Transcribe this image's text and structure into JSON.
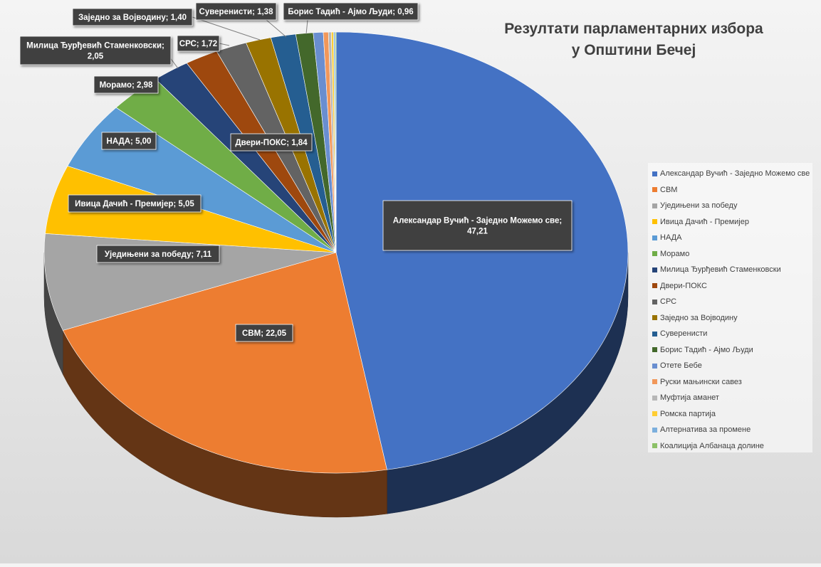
{
  "chart_data": {
    "type": "pie",
    "title": "Резултати парламентарних избора у Општини Бечеј",
    "title_lines": [
      "Резултати парламентарних избора",
      "у Општини Бечеј"
    ],
    "categories": [
      "Александар Вучић - Заједно Можемо све",
      "СВМ",
      "Уједињени за победу",
      "Ивица Дачић - Премијер",
      "НАДА",
      "Морамо",
      "Милица Ђурђевић Стаменковски",
      "Двери-ПОКС",
      "СРС",
      "Заједно за Војводину",
      "Суверенисти",
      "Борис Тадић - Ајмо Људи",
      "Отете Бебе",
      "Руски мањински савез",
      "Муфтија аманет",
      "Ромска партија",
      "Алтернатива за промене",
      "Коалиција Албанаца долине"
    ],
    "values": [
      47.21,
      22.05,
      7.11,
      5.05,
      5.0,
      2.98,
      2.05,
      1.84,
      1.72,
      1.4,
      1.38,
      0.96,
      0.55,
      0.28,
      0.16,
      0.12,
      0.08,
      0.06
    ],
    "legend_labels": [
      "Александар Вучић - Заједно Можемо све",
      "СВМ",
      "Уједињени за победу",
      "Ивица Дачић - Премијер",
      "НАДА",
      "Морамо",
      "Милица Ђурђевић Стаменковски",
      "Двери-ПОКС",
      "СРС",
      "Заједно за Војводину",
      "Суверенисти",
      "Борис Тадић - Ајмо Људи",
      "Отете Бебе",
      "Руски мањински савез",
      "Муфтија аманет",
      "Ромска партија",
      "Алтернатива за промене",
      "Коалиција Албанаца долине"
    ],
    "colors": [
      "#4472C4",
      "#ED7D31",
      "#A5A5A5",
      "#FFC000",
      "#5B9BD5",
      "#70AD47",
      "#264478",
      "#9E480E",
      "#636363",
      "#997300",
      "#255E91",
      "#43682B",
      "#698ED0",
      "#F1975A",
      "#B7B7B7",
      "#FFCD33",
      "#7CAFDD",
      "#8CC168"
    ],
    "data_labels": [
      {
        "text": [
          "Александар Вучић - Заједно Можемо све;",
          "47,21"
        ]
      },
      {
        "text": [
          "СВМ; 22,05"
        ]
      },
      {
        "text": [
          "Уједињени за победу; 7,11"
        ]
      },
      {
        "text": [
          "Ивица Дачић - Премијер; 5,05"
        ]
      },
      {
        "text": [
          "НАДА; 5,00"
        ]
      },
      {
        "text": [
          "Морамо; 2,98"
        ]
      },
      {
        "text": [
          "Милица Ђурђевић Стаменковски;",
          "2,05"
        ]
      },
      {
        "text": [
          "Двери-ПОКС; 1,84"
        ]
      },
      {
        "text": [
          "СРС; 1,72"
        ]
      },
      {
        "text": [
          "Заједно за Војводину; 1,40"
        ]
      },
      {
        "text": [
          "Суверенисти; 1,38"
        ]
      },
      {
        "text": [
          "Борис Тадић - Ајмо Људи; 0,96"
        ]
      }
    ],
    "legend_position": "right",
    "style": "3d-pie",
    "start_angle": "12 o'clock, clockwise"
  }
}
